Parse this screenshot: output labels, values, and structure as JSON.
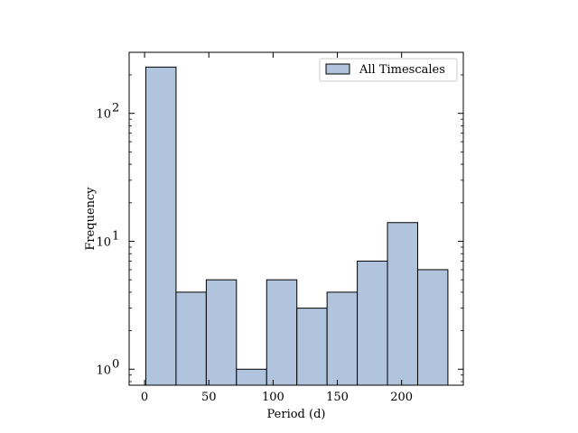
{
  "chart_data": {
    "type": "bar",
    "title": "",
    "xlabel": "Period (d)",
    "ylabel": "Frequency",
    "xlim": [
      -12,
      248
    ],
    "ylim": [
      0.75,
      300
    ],
    "yscale": "log",
    "bin_edges": [
      1,
      24.5,
      48,
      71.5,
      95,
      118.5,
      142,
      165.5,
      189,
      212.5,
      236
    ],
    "values": [
      230,
      4,
      5,
      1,
      5,
      3,
      4,
      7,
      14,
      6
    ],
    "series_name": "All Timescales",
    "fill_color": "#b0c4de",
    "edge_color": "#000000",
    "x_ticks": [
      {
        "value": 0,
        "label": "0"
      },
      {
        "value": 50,
        "label": "50"
      },
      {
        "value": 100,
        "label": "100"
      },
      {
        "value": 150,
        "label": "150"
      },
      {
        "value": 200,
        "label": "200"
      }
    ],
    "y_ticks": [
      {
        "value": 1,
        "base": "10",
        "exp": "0"
      },
      {
        "value": 10,
        "base": "10",
        "exp": "1"
      },
      {
        "value": 100,
        "base": "10",
        "exp": "2"
      }
    ],
    "legend": {
      "position": "top-right",
      "label": "All Timescales"
    }
  }
}
